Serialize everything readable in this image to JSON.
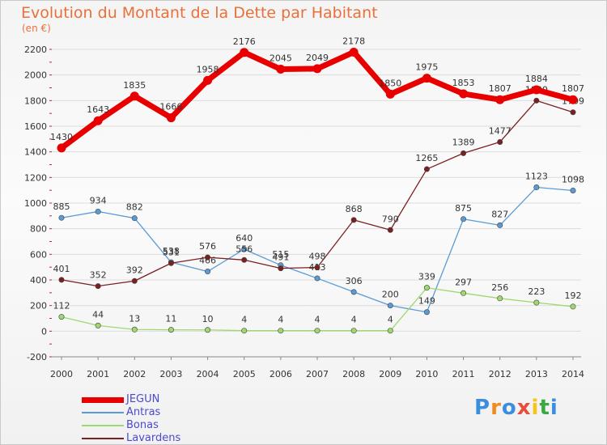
{
  "header": {
    "title": "Evolution du Montant de la Dette par Habitant",
    "subtitle": "(en €)"
  },
  "logo": {
    "text": "Proxiti",
    "colors": [
      "#3a8ee0",
      "#f08c1e",
      "#3a8ee0",
      "#e84c3d",
      "#f5c518",
      "#3aa845",
      "#3a8ee0"
    ]
  },
  "chart_data": {
    "type": "line",
    "title": "Evolution du Montant de la Dette par Habitant",
    "subtitle": "(en €)",
    "xlabel": "",
    "ylabel": "",
    "x": [
      "2000",
      "2001",
      "2002",
      "2003",
      "2004",
      "2005",
      "2006",
      "2007",
      "2008",
      "2009",
      "2010",
      "2011",
      "2012",
      "2013",
      "2014"
    ],
    "ylim": [
      -200,
      2200
    ],
    "yticks": [
      -200,
      0,
      200,
      400,
      600,
      800,
      1000,
      1200,
      1400,
      1600,
      1800,
      2000,
      2200
    ],
    "grid": "horizontal",
    "legend_position": "bottom-left",
    "series": [
      {
        "name": "JEGUN",
        "color": "#e80000",
        "width": 7,
        "values": [
          1430,
          1643,
          1835,
          1666,
          1958,
          2176,
          2045,
          2049,
          2178,
          1850,
          1975,
          1853,
          1807,
          1884,
          1807
        ]
      },
      {
        "name": "Antras",
        "color": "#5b9bd5",
        "width": 1.3,
        "values": [
          885,
          934,
          882,
          538,
          466,
          640,
          515,
          413,
          306,
          200,
          149,
          875,
          827,
          1123,
          1098
        ]
      },
      {
        "name": "Bonas",
        "color": "#9fd86e",
        "width": 1.3,
        "values": [
          112,
          44,
          13,
          11,
          10,
          4,
          4,
          4,
          4,
          4,
          339,
          297,
          256,
          223,
          192
        ]
      },
      {
        "name": "Lavardens",
        "color": "#7a2020",
        "width": 1.3,
        "values": [
          401,
          352,
          392,
          531,
          576,
          556,
          491,
          498,
          868,
          790,
          1265,
          1389,
          1477,
          1800,
          1709
        ]
      }
    ]
  }
}
